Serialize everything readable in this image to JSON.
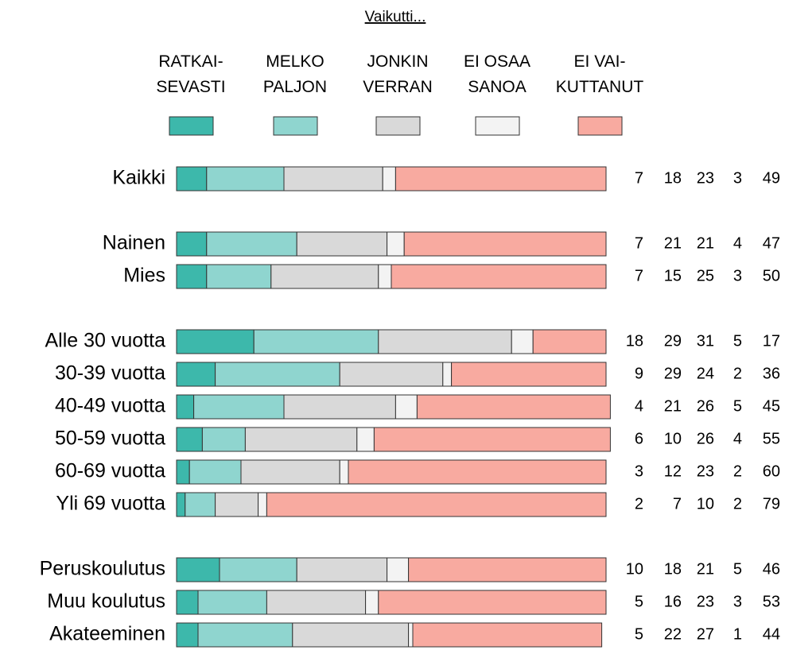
{
  "chart_data": {
    "type": "stacked-bar-horizontal",
    "title": "Vaikutti...",
    "categories": [
      "Kaikki",
      "Nainen",
      "Mies",
      "Alle 30 vuotta",
      "30-39 vuotta",
      "40-49 vuotta",
      "50-59 vuotta",
      "60-69 vuotta",
      "Yli 69 vuotta",
      "Peruskoulutus",
      "Muu koulutus",
      "Akateeminen"
    ],
    "series": [
      {
        "name": "RATKAI-\nSEVASTI",
        "color": "#3db8ab",
        "values": [
          7,
          7,
          7,
          18,
          9,
          4,
          6,
          3,
          2,
          10,
          5,
          5
        ]
      },
      {
        "name": "MELKO\nPALJON",
        "color": "#8fd5cf",
        "values": [
          18,
          21,
          15,
          29,
          29,
          21,
          10,
          12,
          7,
          18,
          16,
          22
        ]
      },
      {
        "name": "JONKIN\nVERRAN",
        "color": "#d9d9d9",
        "values": [
          23,
          21,
          25,
          31,
          24,
          26,
          26,
          23,
          10,
          21,
          23,
          27
        ]
      },
      {
        "name": "EI OSAA\nSANOA",
        "color": "#f3f3f3",
        "values": [
          3,
          4,
          3,
          5,
          2,
          5,
          4,
          2,
          2,
          5,
          3,
          1
        ]
      },
      {
        "name": "EI VAI-\nKUTTANUT",
        "color": "#f8aaa0",
        "values": [
          49,
          47,
          50,
          17,
          36,
          45,
          55,
          60,
          79,
          46,
          53,
          44
        ]
      }
    ]
  }
}
